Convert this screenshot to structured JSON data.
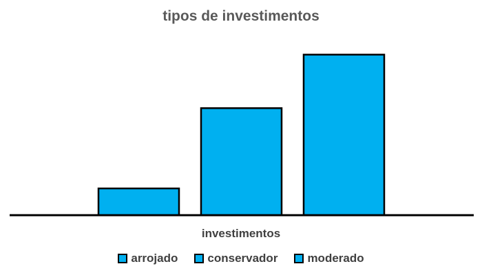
{
  "chart_data": {
    "type": "bar",
    "title": "tipos de investimentos",
    "xlabel": "investimentos",
    "ylabel": "",
    "categories": [
      "investimentos"
    ],
    "series": [
      {
        "name": "arrojado",
        "values": [
          10
        ],
        "color": "#00B0F0"
      },
      {
        "name": "conservador",
        "values": [
          40
        ],
        "color": "#00B0F0"
      },
      {
        "name": "moderado",
        "values": [
          60
        ],
        "color": "#00B0F0"
      }
    ],
    "ylim": [
      0,
      65
    ],
    "grid": false,
    "legend_position": "bottom",
    "bar_outline_color": "#000000"
  }
}
